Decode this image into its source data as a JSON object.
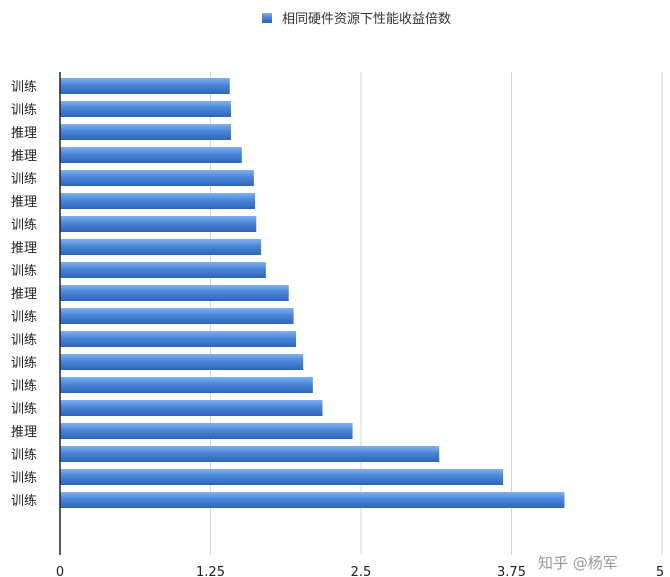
{
  "chart_data": {
    "type": "bar",
    "orientation": "horizontal",
    "legend": {
      "label": "相同硬件资源下性能收益倍数",
      "position": "top",
      "color": "#4a86d8"
    },
    "categories": [
      "训练",
      "训练",
      "推理",
      "推理",
      "训练",
      "推理",
      "训练",
      "推理",
      "训练",
      "推理",
      "训练",
      "训练",
      "训练",
      "训练",
      "训练",
      "推理",
      "训练",
      "训练",
      "训练"
    ],
    "values": [
      1.41,
      1.42,
      1.42,
      1.51,
      1.61,
      1.62,
      1.63,
      1.67,
      1.71,
      1.9,
      1.94,
      1.96,
      2.02,
      2.1,
      2.18,
      2.43,
      3.15,
      3.68,
      4.19
    ],
    "xlim": [
      0,
      5
    ],
    "xticks": [
      "0",
      "1.25",
      "2.5",
      "3.75",
      "5"
    ],
    "grid": "vertical"
  },
  "watermark": "知乎 @杨军"
}
